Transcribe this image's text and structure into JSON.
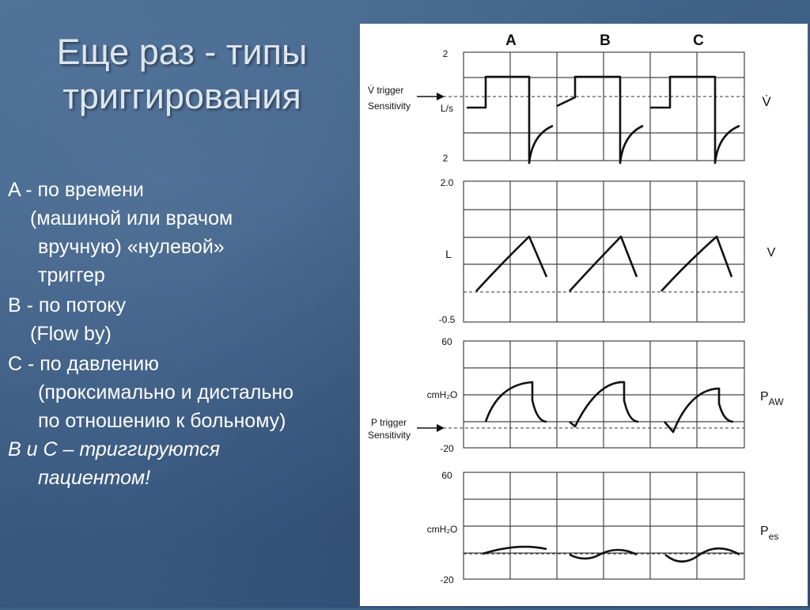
{
  "slide": {
    "title_line1": "Еще раз - типы",
    "title_line2": "триггирования"
  },
  "body": {
    "a_line": "A - по времени",
    "a_detail_1": "(машиной или    врачом",
    "a_detail_2": "вручную) «нулевой»",
    "a_detail_3": "триггер",
    "b_line": "B - по потоку",
    "b_detail": "(Flow by)",
    "c_line": "C - по давлению",
    "c_detail_1": "(проксимально и дистально",
    "c_detail_2": "по отношению к больному)",
    "note_1": "B и C – триггируются",
    "note_2": "пациентом!"
  },
  "figure": {
    "columns": [
      "A",
      "B",
      "C"
    ],
    "flow_panel": {
      "y_top": "2",
      "y_bottom": "2",
      "unit": "L/s",
      "label": "V̇",
      "trigger_label_1": "V̇ trigger",
      "trigger_label_2": "Sensitivity"
    },
    "volume_panel": {
      "y_top": "2.0",
      "y_bottom": "-0.5",
      "unit": "L",
      "label": "V"
    },
    "paw_panel": {
      "y_top": "60",
      "y_bottom": "-20",
      "unit": "cmH₂O",
      "label": "P",
      "label_sub": "AW",
      "trigger_label_1": "P trigger",
      "trigger_label_2": "Sensitivity"
    },
    "pes_panel": {
      "y_top": "60",
      "y_bottom": "-20",
      "unit": "cmH₂O",
      "label": "P",
      "label_sub": "es"
    }
  }
}
